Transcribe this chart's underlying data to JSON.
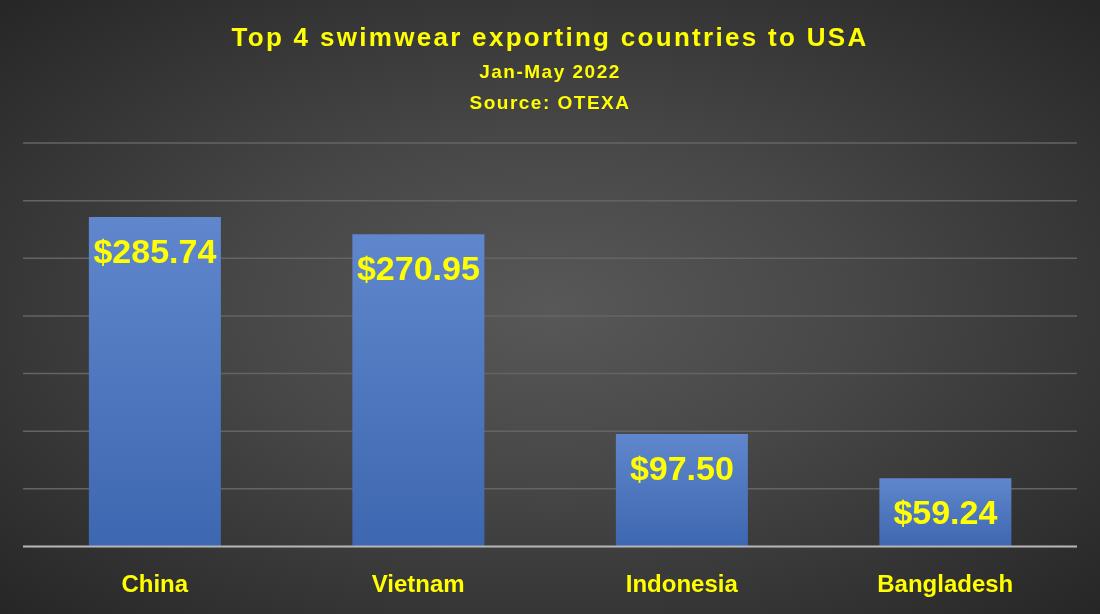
{
  "chart_data": {
    "type": "bar",
    "title": "Top 4 swimwear exporting countries to USA",
    "subtitle": "Jan-May 2022",
    "annotations": [
      "Source: OTEXA"
    ],
    "categories": [
      "China",
      "Vietnam",
      "Indonesia",
      "Bangladesh"
    ],
    "values": [
      285.74,
      270.95,
      97.5,
      59.24
    ],
    "value_labels": [
      "$285.74",
      "$270.95",
      "$97.50",
      "$59.24"
    ],
    "color": "#4472c4",
    "ylim": [
      0,
      350
    ],
    "yticks": [
      {
        "value": 0,
        "label": null
      },
      {
        "value": 50,
        "label": null
      },
      {
        "value": 100,
        "label": null
      },
      {
        "value": 150,
        "label": null
      },
      {
        "value": 200,
        "label": null
      },
      {
        "value": 250,
        "label": null
      },
      {
        "value": 300,
        "label": null
      },
      {
        "value": 350,
        "label": null
      }
    ],
    "grid": "y",
    "tick_labels": "x"
  }
}
